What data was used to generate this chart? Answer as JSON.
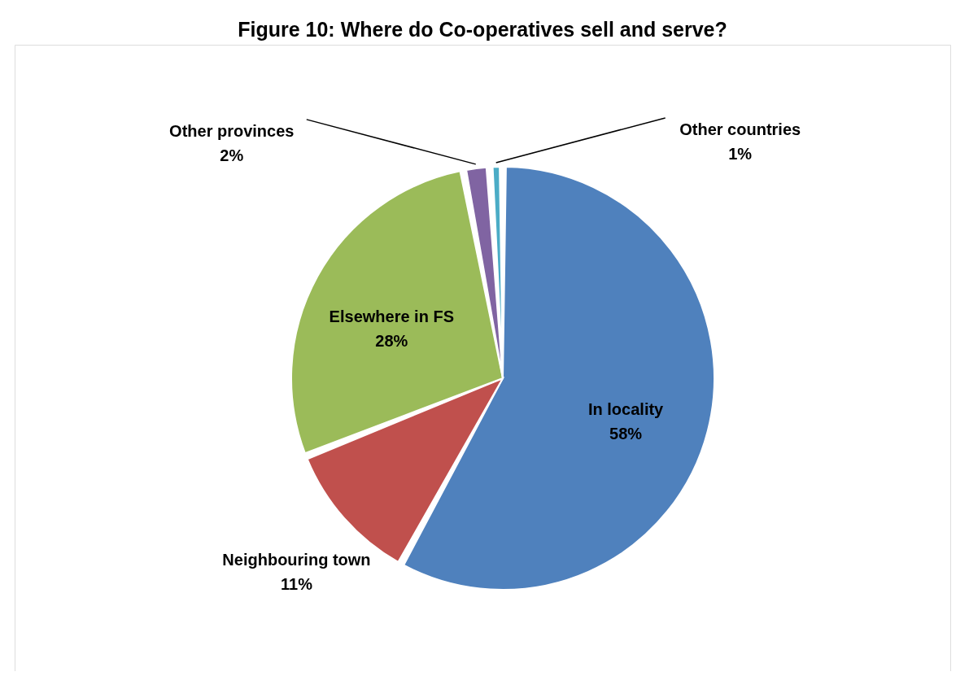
{
  "chart_data": {
    "type": "pie",
    "title": "Figure 10: Where do Co-operatives sell and serve?",
    "categories": [
      "In locality",
      "Neighbouring town",
      "Elsewhere in FS",
      "Other provinces",
      "Other countries"
    ],
    "values": [
      58,
      11,
      28,
      2,
      1
    ],
    "value_labels": [
      "58%",
      "11%",
      "28%",
      "2%",
      "1%"
    ],
    "colors": [
      "#4f81bd",
      "#c0504d",
      "#9bbb59",
      "#8064a2",
      "#4bacc6"
    ],
    "legend": false
  }
}
